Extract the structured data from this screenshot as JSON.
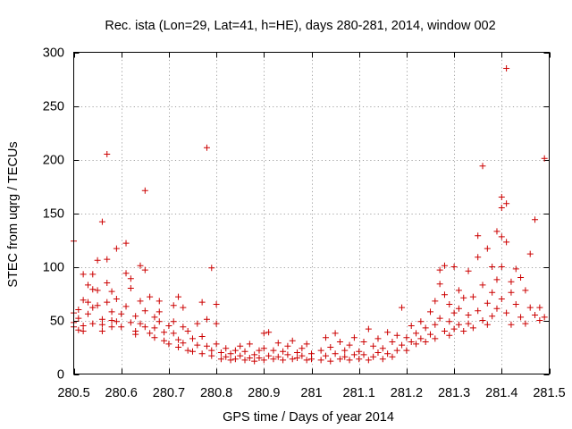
{
  "chart_data": {
    "type": "scatter",
    "title": "Rec. ista (Lon=29, Lat=41, h=HE), days 280-281, 2014, window 002",
    "xlabel": "GPS time / Days of year 2014",
    "ylabel": "STEC from uqrg / TECUs",
    "xlim": [
      280.5,
      281.5
    ],
    "ylim": [
      0,
      300
    ],
    "x_ticks": [
      280.5,
      280.6,
      280.7,
      280.8,
      280.9,
      281.0,
      281.1,
      281.2,
      281.3,
      281.4,
      281.5
    ],
    "x_tick_labels": [
      "280.5",
      "280.6",
      "280.7",
      "280.8",
      "280.9",
      "281",
      "281.1",
      "281.2",
      "281.3",
      "281.4",
      "281.5"
    ],
    "y_ticks": [
      0,
      50,
      100,
      150,
      200,
      250,
      300
    ],
    "y_tick_labels": [
      "0",
      "50",
      "100",
      "150",
      "200",
      "250",
      "300"
    ],
    "grid": true,
    "marker": "+",
    "color": "#cc0000",
    "series": [
      {
        "name": "STEC",
        "points": [
          [
            280.5,
            124
          ],
          [
            280.5,
            57
          ],
          [
            280.5,
            48
          ],
          [
            280.5,
            44
          ],
          [
            280.51,
            41
          ],
          [
            280.51,
            60
          ],
          [
            280.51,
            52
          ],
          [
            280.52,
            93
          ],
          [
            280.52,
            69
          ],
          [
            280.52,
            45
          ],
          [
            280.52,
            40
          ],
          [
            280.53,
            83
          ],
          [
            280.53,
            67
          ],
          [
            280.53,
            56
          ],
          [
            280.54,
            93
          ],
          [
            280.54,
            79
          ],
          [
            280.54,
            62
          ],
          [
            280.54,
            47
          ],
          [
            280.55,
            106
          ],
          [
            280.55,
            78
          ],
          [
            280.55,
            64
          ],
          [
            280.56,
            51
          ],
          [
            280.56,
            46
          ],
          [
            280.56,
            40
          ],
          [
            280.56,
            142
          ],
          [
            280.57,
            205
          ],
          [
            280.57,
            107
          ],
          [
            280.57,
            85
          ],
          [
            280.57,
            67
          ],
          [
            280.58,
            58
          ],
          [
            280.58,
            50
          ],
          [
            280.58,
            44
          ],
          [
            280.58,
            77
          ],
          [
            280.59,
            117
          ],
          [
            280.59,
            70
          ],
          [
            280.59,
            49
          ],
          [
            280.6,
            44
          ],
          [
            280.6,
            56
          ],
          [
            280.61,
            122
          ],
          [
            280.61,
            94
          ],
          [
            280.61,
            63
          ],
          [
            280.62,
            48
          ],
          [
            280.62,
            89
          ],
          [
            280.62,
            80
          ],
          [
            280.63,
            54
          ],
          [
            280.63,
            40
          ],
          [
            280.63,
            37
          ],
          [
            280.64,
            101
          ],
          [
            280.64,
            68
          ],
          [
            280.64,
            47
          ],
          [
            280.65,
            171
          ],
          [
            280.65,
            97
          ],
          [
            280.65,
            59
          ],
          [
            280.65,
            44
          ],
          [
            280.66,
            38
          ],
          [
            280.66,
            72
          ],
          [
            280.67,
            53
          ],
          [
            280.67,
            43
          ],
          [
            280.67,
            34
          ],
          [
            280.68,
            68
          ],
          [
            280.68,
            58
          ],
          [
            280.68,
            49
          ],
          [
            280.69,
            39
          ],
          [
            280.69,
            31
          ],
          [
            280.7,
            45
          ],
          [
            280.7,
            28
          ],
          [
            280.71,
            64
          ],
          [
            280.71,
            49
          ],
          [
            280.71,
            38
          ],
          [
            280.72,
            72
          ],
          [
            280.72,
            32
          ],
          [
            280.72,
            25
          ],
          [
            280.73,
            62
          ],
          [
            280.73,
            44
          ],
          [
            280.73,
            29
          ],
          [
            280.74,
            22
          ],
          [
            280.74,
            40
          ],
          [
            280.75,
            33
          ],
          [
            280.75,
            21
          ],
          [
            280.76,
            47
          ],
          [
            280.76,
            27
          ],
          [
            280.77,
            67
          ],
          [
            280.77,
            35
          ],
          [
            280.77,
            19
          ],
          [
            280.78,
            211
          ],
          [
            280.78,
            51
          ],
          [
            280.78,
            26
          ],
          [
            280.79,
            99
          ],
          [
            280.79,
            17
          ],
          [
            280.79,
            22
          ],
          [
            280.8,
            65
          ],
          [
            280.8,
            47
          ],
          [
            280.8,
            28
          ],
          [
            280.81,
            20
          ],
          [
            280.81,
            14
          ],
          [
            280.82,
            16
          ],
          [
            280.82,
            24
          ],
          [
            280.83,
            13
          ],
          [
            280.83,
            19
          ],
          [
            280.84,
            22
          ],
          [
            280.84,
            14
          ],
          [
            280.85,
            17
          ],
          [
            280.85,
            26
          ],
          [
            280.86,
            13
          ],
          [
            280.86,
            21
          ],
          [
            280.87,
            15
          ],
          [
            280.87,
            28
          ],
          [
            280.88,
            18
          ],
          [
            280.88,
            12
          ],
          [
            280.89,
            22
          ],
          [
            280.89,
            15
          ],
          [
            280.9,
            38
          ],
          [
            280.9,
            13
          ],
          [
            280.9,
            24
          ],
          [
            280.91,
            17
          ],
          [
            280.91,
            39
          ],
          [
            280.92,
            14
          ],
          [
            280.92,
            22
          ],
          [
            280.93,
            16
          ],
          [
            280.93,
            29
          ],
          [
            280.94,
            13
          ],
          [
            280.94,
            21
          ],
          [
            280.95,
            18
          ],
          [
            280.95,
            26
          ],
          [
            280.96,
            14
          ],
          [
            280.96,
            31
          ],
          [
            280.97,
            20
          ],
          [
            280.97,
            15
          ],
          [
            280.98,
            24
          ],
          [
            280.98,
            17
          ],
          [
            280.99,
            13
          ],
          [
            280.99,
            28
          ],
          [
            281.0,
            19
          ],
          [
            281.0,
            14
          ],
          [
            281.02,
            22
          ],
          [
            281.02,
            13
          ],
          [
            281.03,
            34
          ],
          [
            281.03,
            17
          ],
          [
            281.04,
            25
          ],
          [
            281.04,
            12
          ],
          [
            281.05,
            38
          ],
          [
            281.05,
            19
          ],
          [
            281.06,
            14
          ],
          [
            281.06,
            30
          ],
          [
            281.07,
            22
          ],
          [
            281.07,
            16
          ],
          [
            281.08,
            13
          ],
          [
            281.08,
            27
          ],
          [
            281.09,
            34
          ],
          [
            281.09,
            18
          ],
          [
            281.1,
            21
          ],
          [
            281.1,
            14
          ],
          [
            281.11,
            30
          ],
          [
            281.11,
            18
          ],
          [
            281.12,
            42
          ],
          [
            281.12,
            13
          ],
          [
            281.13,
            26
          ],
          [
            281.13,
            16
          ],
          [
            281.14,
            20
          ],
          [
            281.14,
            33
          ],
          [
            281.15,
            14
          ],
          [
            281.15,
            24
          ],
          [
            281.16,
            39
          ],
          [
            281.16,
            19
          ],
          [
            281.17,
            16
          ],
          [
            281.17,
            30
          ],
          [
            281.18,
            22
          ],
          [
            281.18,
            36
          ],
          [
            281.19,
            62
          ],
          [
            281.19,
            27
          ],
          [
            281.2,
            34
          ],
          [
            281.2,
            22
          ],
          [
            281.21,
            45
          ],
          [
            281.21,
            30
          ],
          [
            281.22,
            38
          ],
          [
            281.22,
            28
          ],
          [
            281.23,
            49
          ],
          [
            281.23,
            33
          ],
          [
            281.24,
            43
          ],
          [
            281.24,
            30
          ],
          [
            281.25,
            58
          ],
          [
            281.25,
            37
          ],
          [
            281.26,
            68
          ],
          [
            281.26,
            46
          ],
          [
            281.26,
            33
          ],
          [
            281.27,
            97
          ],
          [
            281.27,
            84
          ],
          [
            281.27,
            52
          ],
          [
            281.28,
            74
          ],
          [
            281.28,
            40
          ],
          [
            281.28,
            101
          ],
          [
            281.29,
            65
          ],
          [
            281.29,
            49
          ],
          [
            281.29,
            36
          ],
          [
            281.3,
            100
          ],
          [
            281.3,
            57
          ],
          [
            281.3,
            42
          ],
          [
            281.31,
            78
          ],
          [
            281.31,
            61
          ],
          [
            281.31,
            46
          ],
          [
            281.32,
            71
          ],
          [
            281.32,
            40
          ],
          [
            281.33,
            96
          ],
          [
            281.33,
            55
          ],
          [
            281.33,
            47
          ],
          [
            281.34,
            72
          ],
          [
            281.34,
            43
          ],
          [
            281.35,
            129
          ],
          [
            281.35,
            109
          ],
          [
            281.35,
            59
          ],
          [
            281.36,
            194
          ],
          [
            281.36,
            83
          ],
          [
            281.36,
            50
          ],
          [
            281.37,
            117
          ],
          [
            281.37,
            66
          ],
          [
            281.37,
            46
          ],
          [
            281.38,
            100
          ],
          [
            281.38,
            76
          ],
          [
            281.38,
            54
          ],
          [
            281.39,
            133
          ],
          [
            281.39,
            88
          ],
          [
            281.39,
            61
          ],
          [
            281.4,
            165
          ],
          [
            281.4,
            155
          ],
          [
            281.4,
            128
          ],
          [
            281.4,
            100
          ],
          [
            281.4,
            70
          ],
          [
            281.41,
            285
          ],
          [
            281.41,
            159
          ],
          [
            281.41,
            123
          ],
          [
            281.41,
            57
          ],
          [
            281.42,
            86
          ],
          [
            281.42,
            76
          ],
          [
            281.42,
            46
          ],
          [
            281.43,
            98
          ],
          [
            281.43,
            65
          ],
          [
            281.44,
            90
          ],
          [
            281.44,
            53
          ],
          [
            281.45,
            78
          ],
          [
            281.45,
            47
          ],
          [
            281.46,
            112
          ],
          [
            281.46,
            62
          ],
          [
            281.47,
            144
          ],
          [
            281.47,
            55
          ],
          [
            281.48,
            62
          ],
          [
            281.48,
            50
          ],
          [
            281.49,
            201
          ],
          [
            281.49,
            53
          ]
        ]
      }
    ]
  }
}
